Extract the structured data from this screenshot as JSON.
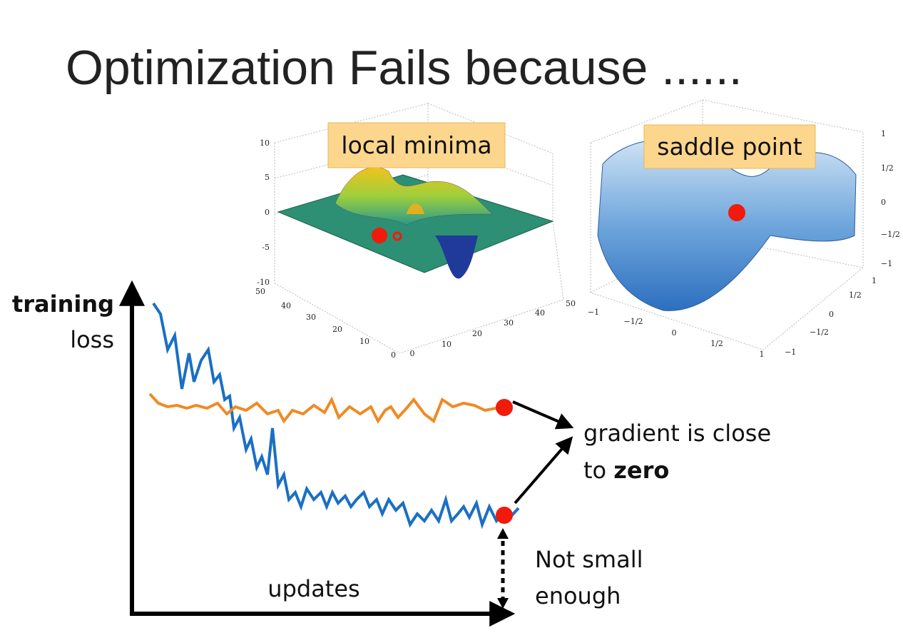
{
  "title": "Optimization Fails because ......",
  "left_plot": {
    "label": "local minima",
    "z_ticks": [
      "10",
      "5",
      "0",
      "-5",
      "-10"
    ],
    "y_ticks": [
      "50",
      "40",
      "30",
      "20",
      "10",
      "0"
    ],
    "x_ticks": [
      "0",
      "10",
      "20",
      "30",
      "40",
      "50"
    ]
  },
  "right_plot": {
    "label": "saddle point",
    "z_ticks": [
      "1",
      "1/2",
      "0",
      "−1/2",
      "−1"
    ],
    "x_ticks": [
      "−1",
      "−1/2",
      "0",
      "1/2",
      "1"
    ],
    "y_ticks": [
      "1",
      "1/2",
      "0",
      "−1/2",
      "−1"
    ]
  },
  "axis": {
    "y_label_bold": "training",
    "y_label": "loss",
    "x_label": "updates"
  },
  "annotations": {
    "gradient_line1": "gradient is close",
    "gradient_line2": "to ",
    "gradient_bold": "zero",
    "not_small_line1": "Not small",
    "not_small_line2": "enough"
  }
}
